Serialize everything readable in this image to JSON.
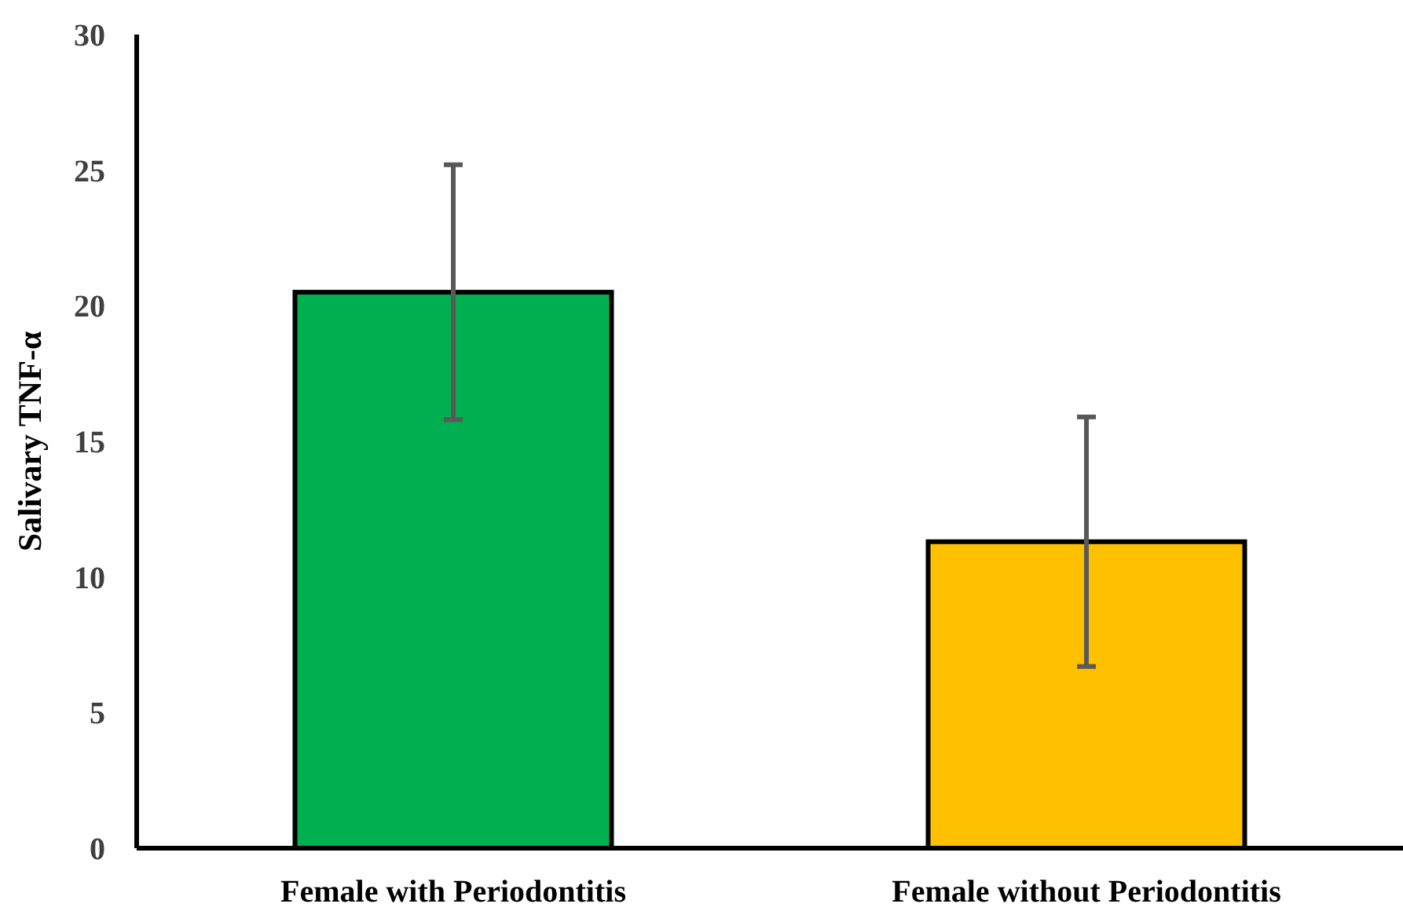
{
  "chart_data": {
    "type": "bar",
    "ylabel": "Salivary TNF-α",
    "categories": [
      "Female with Periodontitis",
      "Female without Periodontitis"
    ],
    "values": [
      20.5,
      11.3
    ],
    "errors": [
      4.7,
      4.6
    ],
    "colors": [
      "#00b050",
      "#ffc000"
    ],
    "ylim": [
      0,
      30
    ],
    "yticks": [
      0,
      5,
      10,
      15,
      20,
      25,
      30
    ],
    "grid": false
  }
}
